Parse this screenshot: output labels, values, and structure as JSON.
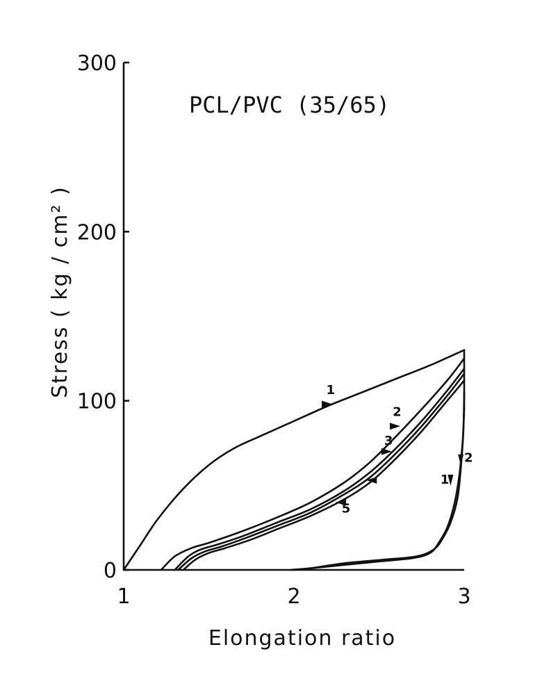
{
  "chart_data": {
    "type": "line",
    "title": "PCL/PVC (35/65)",
    "xlabel": "Elongation ratio",
    "ylabel": "Stress   ( kg / cm² )",
    "xlim": [
      1,
      3
    ],
    "ylim": [
      0,
      300
    ],
    "xticks": [
      "1",
      "2",
      "3"
    ],
    "yticks": [
      "0",
      "100",
      "200",
      "300"
    ],
    "grid": false,
    "series": [
      {
        "id": "load-1",
        "x": [
          1.0,
          1.1,
          1.2,
          1.35,
          1.5,
          1.65,
          1.8,
          2.0,
          2.2,
          2.4,
          2.6,
          2.8,
          3.0
        ],
        "y": [
          0,
          15,
          30,
          48,
          62,
          72,
          79,
          88,
          97,
          105,
          113,
          121,
          130
        ]
      },
      {
        "id": "load-2",
        "x": [
          1.22,
          1.3,
          1.4,
          1.5,
          1.7,
          1.9,
          2.1,
          2.3,
          2.45,
          2.6,
          2.75,
          2.9,
          3.0
        ],
        "y": [
          0,
          8,
          13,
          16,
          23,
          31,
          40,
          52,
          64,
          79,
          95,
          112,
          125
        ]
      },
      {
        "id": "load-3",
        "x": [
          1.3,
          1.38,
          1.45,
          1.55,
          1.7,
          1.9,
          2.1,
          2.3,
          2.45,
          2.6,
          2.75,
          2.9,
          3.0
        ],
        "y": [
          0,
          8,
          12,
          15,
          20,
          28,
          36,
          47,
          58,
          72,
          88,
          106,
          119
        ]
      },
      {
        "id": "load-4",
        "x": [
          1.32,
          1.4,
          1.48,
          1.58,
          1.72,
          1.9,
          2.1,
          2.3,
          2.45,
          2.6,
          2.75,
          2.9,
          3.0
        ],
        "y": [
          0,
          7,
          11,
          14,
          19,
          26,
          34,
          45,
          55,
          69,
          85,
          103,
          116
        ]
      },
      {
        "id": "load-5",
        "x": [
          1.35,
          1.42,
          1.5,
          1.6,
          1.75,
          1.9,
          2.1,
          2.3,
          2.45,
          2.6,
          2.75,
          2.9,
          3.0
        ],
        "y": [
          0,
          6,
          10,
          13,
          18,
          24,
          32,
          42,
          52,
          66,
          82,
          100,
          112
        ]
      },
      {
        "id": "unload-1",
        "x": [
          3.0,
          2.99,
          2.97,
          2.94,
          2.9,
          2.85,
          2.8,
          2.7,
          2.5,
          2.3,
          2.1,
          1.98
        ],
        "y": [
          95,
          75,
          55,
          38,
          25,
          16,
          10,
          7,
          5,
          3,
          1,
          0
        ]
      },
      {
        "id": "unload-2",
        "x": [
          3.0,
          2.995,
          2.98,
          2.96,
          2.92,
          2.87,
          2.82,
          2.72,
          2.52,
          2.3,
          2.1,
          2.0
        ],
        "y": [
          105,
          82,
          60,
          42,
          28,
          18,
          12,
          8,
          6,
          4,
          1,
          0
        ]
      }
    ],
    "annotations": [
      {
        "text": "1",
        "x": 2.19,
        "y": 104
      },
      {
        "text": "2",
        "x": 2.58,
        "y": 91
      },
      {
        "text": "3",
        "x": 2.53,
        "y": 74
      },
      {
        "text": "5",
        "x": 2.28,
        "y": 34
      },
      {
        "text": "1",
        "x": 2.86,
        "y": 51
      },
      {
        "text": "2",
        "x": 3.0,
        "y": 64
      }
    ],
    "arrows": [
      {
        "x": 2.2,
        "y": 98,
        "dir": "right"
      },
      {
        "x": 2.6,
        "y": 85,
        "dir": "right"
      },
      {
        "x": 2.55,
        "y": 70,
        "dir": "right"
      },
      {
        "x": 2.45,
        "y": 53,
        "dir": "left"
      },
      {
        "x": 2.27,
        "y": 40,
        "dir": "left"
      },
      {
        "x": 2.92,
        "y": 53,
        "dir": "down"
      },
      {
        "x": 2.98,
        "y": 65,
        "dir": "down"
      }
    ]
  }
}
